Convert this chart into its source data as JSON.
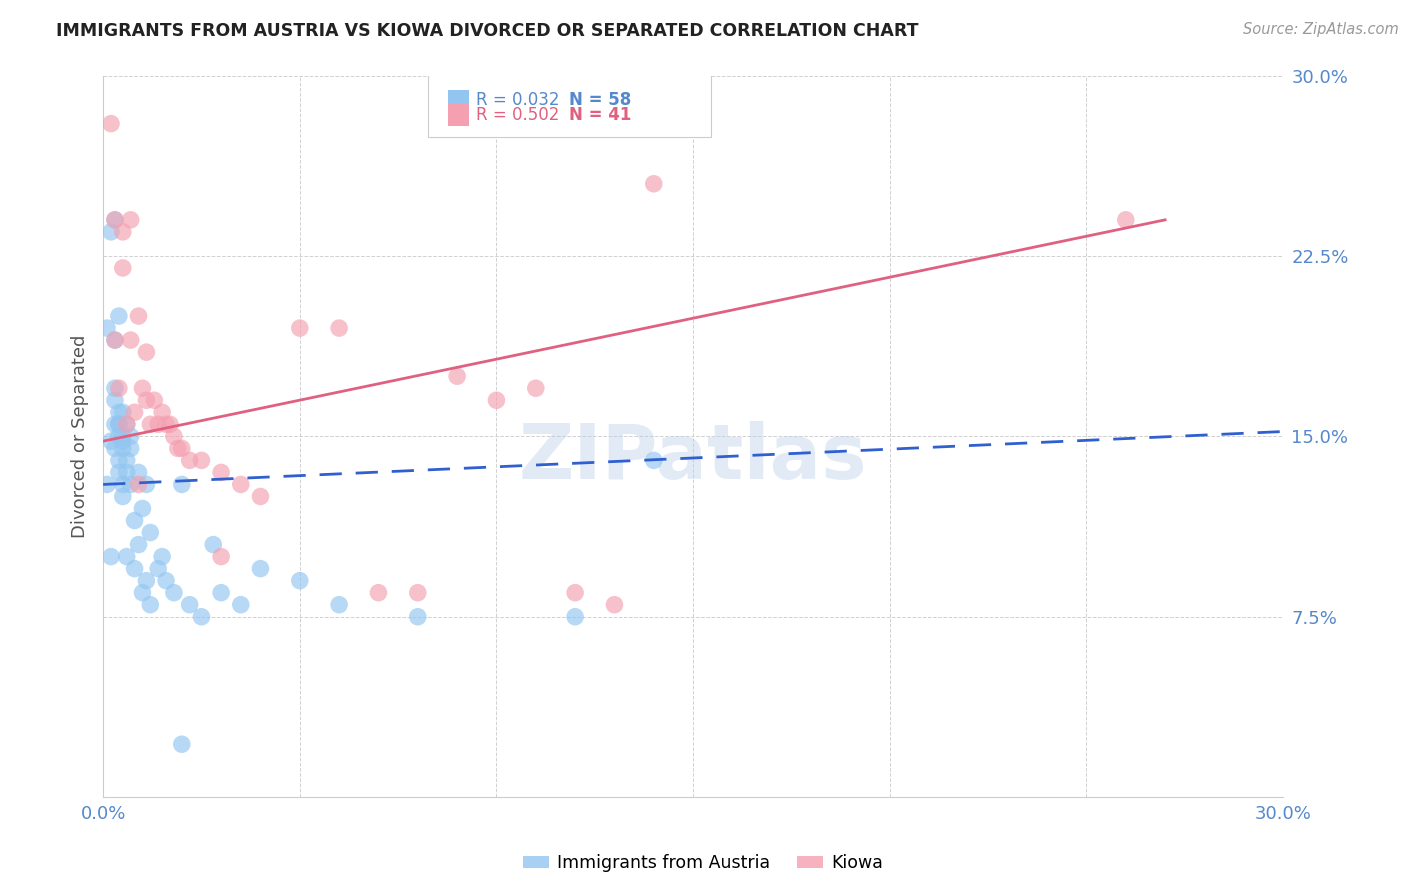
{
  "title": "IMMIGRANTS FROM AUSTRIA VS KIOWA DIVORCED OR SEPARATED CORRELATION CHART",
  "source_text": "Source: ZipAtlas.com",
  "ylabel": "Divorced or Separated",
  "legend_label1": "Immigrants from Austria",
  "legend_label2": "Kiowa",
  "legend_r1": "R = 0.032",
  "legend_n1": "N = 58",
  "legend_r2": "R = 0.502",
  "legend_n2": "N = 41",
  "xlim": [
    0.0,
    0.3
  ],
  "ylim": [
    0.0,
    0.3
  ],
  "yticks": [
    0.0,
    0.075,
    0.15,
    0.225,
    0.3
  ],
  "ytick_labels": [
    "",
    "7.5%",
    "15.0%",
    "22.5%",
    "30.0%"
  ],
  "xticks": [
    0.0,
    0.05,
    0.1,
    0.15,
    0.2,
    0.25,
    0.3
  ],
  "xtick_labels": [
    "0.0%",
    "",
    "",
    "",
    "",
    "",
    "30.0%"
  ],
  "color_blue": "#92c5f0",
  "color_pink": "#f4a0b0",
  "line_blue": "#3060d0",
  "line_pink": "#e06080",
  "axis_tick_color": "#5588cc",
  "background_color": "#ffffff",
  "watermark": "ZIPatlas",
  "blue_scatter_x": [
    0.001,
    0.002,
    0.001,
    0.003,
    0.002,
    0.003,
    0.002,
    0.004,
    0.003,
    0.004,
    0.003,
    0.004,
    0.003,
    0.004,
    0.003,
    0.005,
    0.004,
    0.005,
    0.004,
    0.005,
    0.004,
    0.005,
    0.005,
    0.006,
    0.005,
    0.006,
    0.006,
    0.007,
    0.006,
    0.007,
    0.007,
    0.008,
    0.008,
    0.009,
    0.009,
    0.01,
    0.01,
    0.011,
    0.011,
    0.012,
    0.012,
    0.014,
    0.015,
    0.016,
    0.018,
    0.02,
    0.022,
    0.025,
    0.028,
    0.03,
    0.035,
    0.04,
    0.05,
    0.06,
    0.08,
    0.12,
    0.14,
    0.02
  ],
  "blue_scatter_y": [
    0.13,
    0.235,
    0.195,
    0.24,
    0.1,
    0.155,
    0.148,
    0.15,
    0.145,
    0.2,
    0.19,
    0.16,
    0.17,
    0.155,
    0.165,
    0.15,
    0.14,
    0.16,
    0.135,
    0.125,
    0.155,
    0.145,
    0.13,
    0.14,
    0.148,
    0.155,
    0.135,
    0.145,
    0.1,
    0.15,
    0.13,
    0.115,
    0.095,
    0.135,
    0.105,
    0.085,
    0.12,
    0.09,
    0.13,
    0.08,
    0.11,
    0.095,
    0.1,
    0.09,
    0.085,
    0.13,
    0.08,
    0.075,
    0.105,
    0.085,
    0.08,
    0.095,
    0.09,
    0.08,
    0.075,
    0.075,
    0.14,
    0.022
  ],
  "pink_scatter_x": [
    0.002,
    0.003,
    0.004,
    0.005,
    0.006,
    0.007,
    0.008,
    0.009,
    0.01,
    0.011,
    0.012,
    0.014,
    0.016,
    0.018,
    0.02,
    0.022,
    0.025,
    0.03,
    0.035,
    0.04,
    0.05,
    0.06,
    0.07,
    0.08,
    0.09,
    0.1,
    0.11,
    0.12,
    0.13,
    0.14,
    0.003,
    0.005,
    0.007,
    0.009,
    0.011,
    0.013,
    0.015,
    0.017,
    0.019,
    0.26,
    0.03
  ],
  "pink_scatter_y": [
    0.28,
    0.19,
    0.17,
    0.22,
    0.155,
    0.19,
    0.16,
    0.13,
    0.17,
    0.165,
    0.155,
    0.155,
    0.155,
    0.15,
    0.145,
    0.14,
    0.14,
    0.135,
    0.13,
    0.125,
    0.195,
    0.195,
    0.085,
    0.085,
    0.175,
    0.165,
    0.17,
    0.085,
    0.08,
    0.255,
    0.24,
    0.235,
    0.24,
    0.2,
    0.185,
    0.165,
    0.16,
    0.155,
    0.145,
    0.24,
    0.1
  ],
  "blue_line_x": [
    0.0,
    0.3
  ],
  "blue_line_y": [
    0.13,
    0.152
  ],
  "pink_line_x": [
    0.0,
    0.27
  ],
  "pink_line_y": [
    0.148,
    0.24
  ]
}
